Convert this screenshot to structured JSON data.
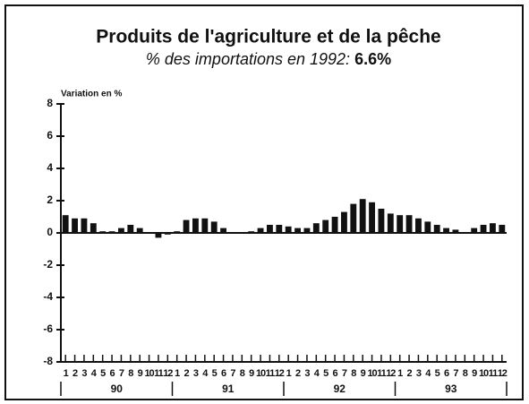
{
  "chart_data": {
    "type": "bar",
    "title": "Produits de l'agriculture et de la pêche",
    "subtitle": "% des importations en 1992:",
    "subtitle_value": "6.6%",
    "y_axis_label": "Variation en %",
    "categories": [
      "1",
      "2",
      "3",
      "4",
      "5",
      "6",
      "7",
      "8",
      "9",
      "10",
      "11",
      "12",
      "1",
      "2",
      "3",
      "4",
      "5",
      "6",
      "7",
      "8",
      "9",
      "10",
      "11",
      "12",
      "1",
      "2",
      "3",
      "4",
      "5",
      "6",
      "7",
      "8",
      "9",
      "10",
      "11",
      "12",
      "1",
      "2",
      "3",
      "4",
      "5",
      "6",
      "7",
      "8",
      "9",
      "10",
      "11",
      "12"
    ],
    "years": [
      "90",
      "91",
      "92",
      "93"
    ],
    "values": [
      1.1,
      0.9,
      0.9,
      0.6,
      0.1,
      0.1,
      0.3,
      0.5,
      0.3,
      0.0,
      -0.3,
      -0.1,
      0.1,
      0.8,
      0.9,
      0.9,
      0.7,
      0.3,
      0.0,
      0.0,
      0.1,
      0.3,
      0.5,
      0.5,
      0.4,
      0.3,
      0.3,
      0.6,
      0.8,
      1.0,
      1.3,
      1.8,
      2.1,
      1.9,
      1.5,
      1.2,
      1.1,
      1.1,
      0.9,
      0.7,
      0.5,
      0.3,
      0.2,
      0.0,
      0.3,
      0.5,
      0.6,
      0.5
    ],
    "color": "#111111",
    "ylim": [
      -8,
      8
    ],
    "yticks": [
      -8,
      -6,
      -4,
      -2,
      0,
      2,
      4,
      6,
      8
    ]
  }
}
